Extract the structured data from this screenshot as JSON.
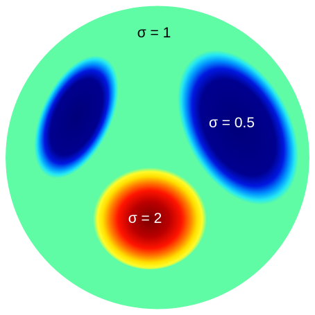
{
  "figure": {
    "domain_color": "#5ffca5",
    "labels": {
      "background": "σ = 1",
      "right_inclusion": "σ = 0.5",
      "bottom_inclusion": "σ = 2"
    },
    "label_colors": {
      "background": "#000000",
      "right_inclusion": "#ffffff",
      "bottom_inclusion": "#ffffff"
    },
    "inclusions": [
      {
        "name": "left-inclusion",
        "sigma": 0.5,
        "color_core": "#00007a"
      },
      {
        "name": "right-inclusion",
        "sigma": 0.5,
        "color_core": "#00007a"
      },
      {
        "name": "bottom-inclusion",
        "sigma": 2,
        "color_core": "#8b0000"
      }
    ]
  }
}
